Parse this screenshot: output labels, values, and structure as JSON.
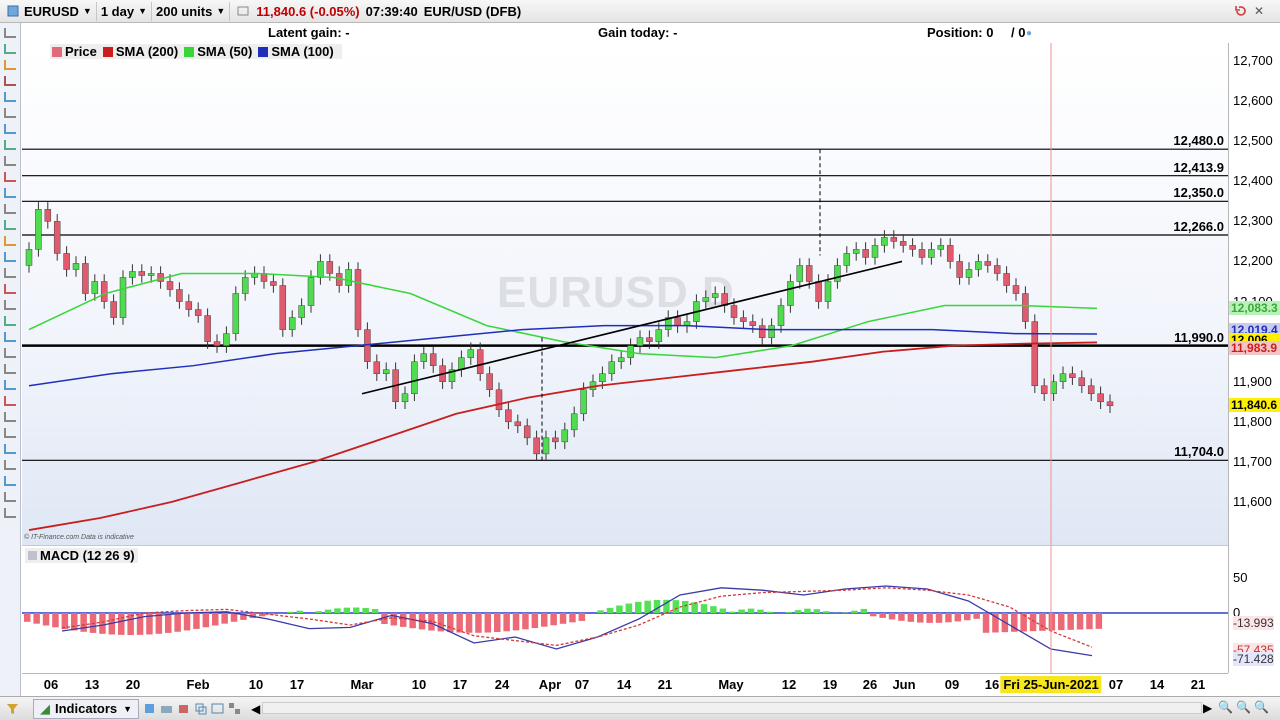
{
  "toolbar": {
    "instrument": "EURUSD",
    "period": "1 day",
    "size": "200 units",
    "quote": "11,840.6 (-0.05%)",
    "time": "07:39:40",
    "instrument_full": "EUR/USD (DFB)"
  },
  "infobar": {
    "latent_gain": "Latent gain: -",
    "gain_today": "Gain today: -",
    "position": "Position: 0",
    "position_extra": "/ 0"
  },
  "legend": [
    {
      "label": "Price",
      "color": "#e06a7a"
    },
    {
      "label": "SMA (200)",
      "color": "#c81e1e"
    },
    {
      "label": "SMA (50)",
      "color": "#39d639"
    },
    {
      "label": "SMA (100)",
      "color": "#1f2fb8"
    }
  ],
  "watermark": "EURUSD D",
  "credit": "© IT-Finance.com  Data is indicative",
  "price_axis": {
    "ticks": [
      "12,700",
      "12,600",
      "12,500",
      "12,400",
      "12,300",
      "12,200",
      "12,100",
      "11,900",
      "11,800",
      "11,700",
      "11,600"
    ],
    "boxes": [
      {
        "label": "12,083.3",
        "bg": "#b9f2b9",
        "color": "#39a839"
      },
      {
        "label": "12,019.4",
        "bg": "#c8ccf0",
        "color": "#1f2fb8"
      },
      {
        "label": "12,006",
        "bg": "#fff200",
        "color": "#000000"
      },
      {
        "label": "11,983.9",
        "bg": "#f3c4c4",
        "color": "#c81e1e"
      },
      {
        "label": "11,840.6",
        "bg": "#fff200",
        "color": "#000000"
      }
    ]
  },
  "hlines": [
    "12,480.0",
    "12,413.9",
    "12,350.0",
    "12,266.0",
    "11,990.0",
    "11,704.0"
  ],
  "macd": {
    "label": "MACD (12 26 9)",
    "axis": [
      "50",
      "0",
      "-13.993",
      "-57.435",
      "-71.428"
    ]
  },
  "dates": [
    "06",
    "13",
    "20",
    "Feb",
    "10",
    "17",
    "Mar",
    "10",
    "17",
    "24",
    "Apr",
    "07",
    "14",
    "21",
    "May",
    "12",
    "19",
    "26",
    "Jun",
    "09",
    "16",
    "07",
    "14",
    "21"
  ],
  "date_highlight": "Fri 25-Jun-2021",
  "bottom": {
    "indicators": "Indicators"
  },
  "colors": {
    "up": "#4fdc4f",
    "down": "#e05b6e",
    "sma200": "#c81e1e",
    "sma50": "#39d639",
    "sma100": "#1f2fb8"
  }
}
